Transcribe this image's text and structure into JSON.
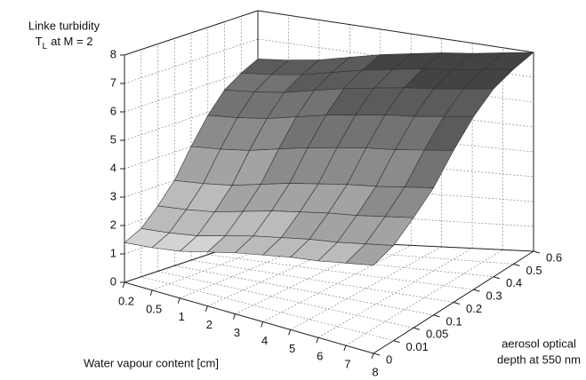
{
  "chart_data": {
    "type": "surface3d",
    "zlabel": [
      "Linke turbidity",
      "T",
      "L",
      "at M = 2"
    ],
    "xlabel": "Water vapour content [cm]",
    "ylabel": [
      "aerosol optical",
      "depth at 550 nm"
    ],
    "categories": [
      0.2,
      0.5,
      1,
      2,
      3,
      4,
      5,
      6,
      7,
      8
    ],
    "y_categories": [
      0,
      0.01,
      0.05,
      0.1,
      0.2,
      0.3,
      0.4,
      0.5,
      0.6
    ],
    "zlim": [
      0,
      8
    ],
    "zticks": [
      0,
      1,
      2,
      3,
      4,
      5,
      6,
      7,
      8
    ],
    "grid": true,
    "values": [
      [
        1.4,
        1.5,
        1.65,
        1.9,
        2.15,
        2.35,
        2.55,
        2.7,
        2.9,
        3.1
      ],
      [
        1.7,
        1.8,
        1.95,
        2.2,
        2.45,
        2.65,
        2.85,
        3.0,
        3.2,
        3.4
      ],
      [
        2.3,
        2.4,
        2.55,
        2.8,
        3.05,
        3.25,
        3.45,
        3.6,
        3.8,
        4.0
      ],
      [
        3.0,
        3.1,
        3.25,
        3.5,
        3.75,
        3.95,
        4.15,
        4.3,
        4.5,
        4.7
      ],
      [
        4.0,
        4.1,
        4.25,
        4.5,
        4.75,
        4.95,
        5.15,
        5.3,
        5.5,
        5.7
      ],
      [
        4.9,
        5.0,
        5.15,
        5.4,
        5.65,
        5.85,
        6.05,
        6.2,
        6.4,
        6.6
      ],
      [
        5.6,
        5.7,
        5.85,
        6.1,
        6.35,
        6.55,
        6.75,
        6.9,
        7.1,
        7.3
      ],
      [
        6.0,
        6.1,
        6.25,
        6.5,
        6.75,
        6.95,
        7.15,
        7.3,
        7.5,
        7.7
      ],
      [
        6.3,
        6.4,
        6.55,
        6.8,
        7.05,
        7.25,
        7.45,
        7.6,
        7.8,
        8.0
      ]
    ]
  }
}
